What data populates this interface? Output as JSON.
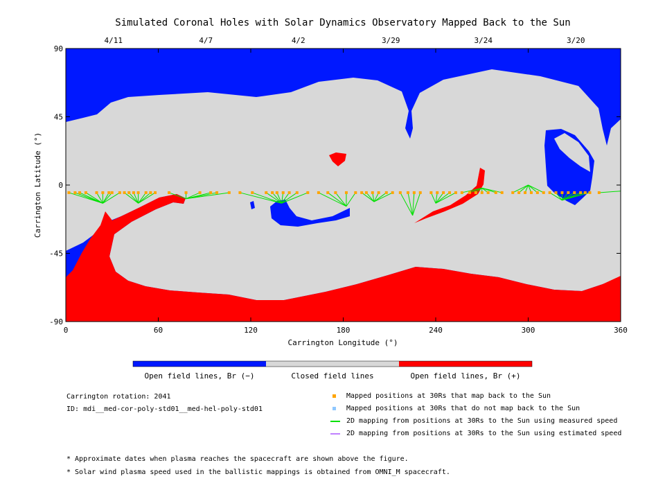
{
  "chart_data": {
    "type": "map",
    "title": "Simulated Coronal Holes with Solar Dynamics Observatory Mapped Back to the Sun",
    "xlabel": "Carrington Longitude (°)",
    "ylabel": "Carrington Latitude (°)",
    "xlim": [
      0,
      360
    ],
    "ylim": [
      -90,
      90
    ],
    "x_ticks": [
      "0",
      "60",
      "120",
      "180",
      "240",
      "300",
      "360"
    ],
    "y_ticks": [
      "90",
      "45",
      "0",
      "-45",
      "-90"
    ],
    "x_tick_values": [
      0,
      60,
      120,
      180,
      240,
      300,
      360
    ],
    "y_tick_values": [
      90,
      45,
      0,
      -45,
      -90
    ],
    "top_date_labels": [
      {
        "label": "4/11",
        "lon": 30
      },
      {
        "label": "4/7",
        "lon": 90
      },
      {
        "label": "4/2",
        "lon": 150
      },
      {
        "label": "3/29",
        "lon": 210
      },
      {
        "label": "3/24",
        "lon": 270
      },
      {
        "label": "3/20",
        "lon": 330
      }
    ],
    "colors": {
      "open_negative": "#0018ff",
      "closed": "#d8d8d8",
      "open_positive": "#ff0000",
      "mapped_points": "#ffa500",
      "unmapped_points": "#8fc8ff",
      "measured_lines": "#00e000",
      "estimated_lines": "#c080ff"
    },
    "colorbar": [
      {
        "label": "Open field lines, Br (−)",
        "color": "#0018ff"
      },
      {
        "label": "Closed field lines",
        "color": "#d8d8d8"
      },
      {
        "label": "Open field lines, Br (+)",
        "color": "#ff0000"
      }
    ],
    "mapped_longitudes": [
      2,
      6,
      9,
      13,
      20,
      24,
      28,
      30,
      35,
      38,
      41,
      44,
      47,
      52,
      55,
      58,
      67,
      78,
      87,
      94,
      98,
      106,
      113,
      121,
      130,
      134,
      137,
      141,
      145,
      150,
      157,
      164,
      170,
      175,
      182,
      188,
      192,
      195,
      199,
      203,
      208,
      212,
      217,
      222,
      226,
      230,
      237,
      241,
      245,
      249,
      253,
      257,
      262,
      266,
      270,
      274,
      279,
      283,
      290,
      294,
      298,
      302,
      306,
      310,
      314,
      318,
      322,
      326,
      330,
      334,
      337,
      340,
      346
    ],
    "mapped_latitude": -5
  },
  "info": {
    "rotation": "Carrington rotation: 2041",
    "id": "ID: mdi__med-cor-poly-std01__med-hel-poly-std01"
  },
  "legend": [
    {
      "label": "Mapped positions at 30Rs that map back to the Sun",
      "kind": "square",
      "color": "#ffa500"
    },
    {
      "label": "Mapped positions at 30Rs that do not map back to the Sun",
      "kind": "square",
      "color": "#8fc8ff"
    },
    {
      "label": "2D mapping from positions at 30Rs to the Sun using measured speed",
      "kind": "line",
      "color": "#00e000"
    },
    {
      "label": "2D mapping from positions at 30Rs to the Sun using estimated speed",
      "kind": "line",
      "color": "#c080ff"
    }
  ],
  "footnotes": [
    "* Approximate dates when plasma reaches the spacecraft are shown above the figure.",
    "* Solar wind plasma speed used in the ballistic mappings is obtained from OMNI_M spacecraft."
  ]
}
